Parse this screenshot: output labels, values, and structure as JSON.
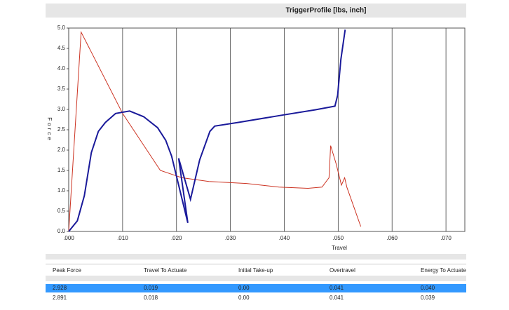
{
  "chart_data": {
    "type": "line",
    "title": "TriggerProfile [lbs, inch]",
    "x_label": "Travel",
    "y_label": "Force",
    "xlim": [
      0,
      0.0735
    ],
    "ylim": [
      0,
      5.0
    ],
    "grid": "x",
    "xticks": [
      {
        "value": 0,
        "label": ".000"
      },
      {
        "value": 0.01,
        "label": ".010"
      },
      {
        "value": 0.02,
        "label": ".020"
      },
      {
        "value": 0.03,
        "label": ".030"
      },
      {
        "value": 0.04,
        "label": ".040"
      },
      {
        "value": 0.05,
        "label": ".050"
      },
      {
        "value": 0.06,
        "label": ".060"
      },
      {
        "value": 0.07,
        "label": ".070"
      }
    ],
    "yticks": [
      {
        "value": 0,
        "label": "0.0"
      },
      0.5,
      {
        "value": 1,
        "label": "1.0"
      },
      1.5,
      {
        "value": 2,
        "label": "2.0"
      },
      2.5,
      {
        "value": 3,
        "label": "3.0"
      },
      3.5,
      {
        "value": 4,
        "label": "4.0"
      },
      4.5,
      {
        "value": 5,
        "label": "5.0"
      }
    ],
    "series": [
      {
        "color": "#cc3322",
        "x": [
          0,
          0.0023,
          0.01,
          0.017,
          0.021,
          0.026,
          0.033,
          0.039,
          0.0444,
          0.047,
          0.0483,
          0.0486,
          0.0496,
          0.0506,
          0.0512,
          0.0516,
          0.0542
        ],
        "values": [
          0,
          4.9,
          2.9,
          1.5,
          1.32,
          1.23,
          1.18,
          1.09,
          1.06,
          1.09,
          1.32,
          2.11,
          1.67,
          1.14,
          1.32,
          1.09,
          0.12
        ]
      },
      {
        "color": "#1a1a9a",
        "x": [
          0,
          0.0016,
          0.0029,
          0.0042,
          0.0055,
          0.0068,
          0.0087,
          0.0113,
          0.0139,
          0.0165,
          0.018,
          0.0191,
          0.0204,
          0.0221,
          0.0204,
          0.0226,
          0.0243,
          0.0262,
          0.0271,
          0.0314,
          0.0392,
          0.0457,
          0.0494,
          0.0499,
          0.0505,
          0.0513
        ],
        "values": [
          0,
          0.26,
          0.88,
          1.94,
          2.46,
          2.68,
          2.9,
          2.96,
          2.82,
          2.55,
          2.24,
          1.85,
          1.14,
          0.21,
          1.8,
          0.79,
          1.76,
          2.46,
          2.59,
          2.68,
          2.85,
          2.99,
          3.08,
          3.35,
          4.23,
          4.96
        ]
      }
    ]
  },
  "table": {
    "columns": [
      "Peak Force",
      "Travel To Actuate",
      "Initial Take-up",
      "Overtravel",
      "Energy To Actuate"
    ],
    "rows": [
      [
        "2.928",
        "0.019",
        "0.00",
        "0.041",
        "0.040"
      ],
      [
        "2.891",
        "0.018",
        "0.00",
        "0.041",
        "0.039"
      ]
    ]
  }
}
